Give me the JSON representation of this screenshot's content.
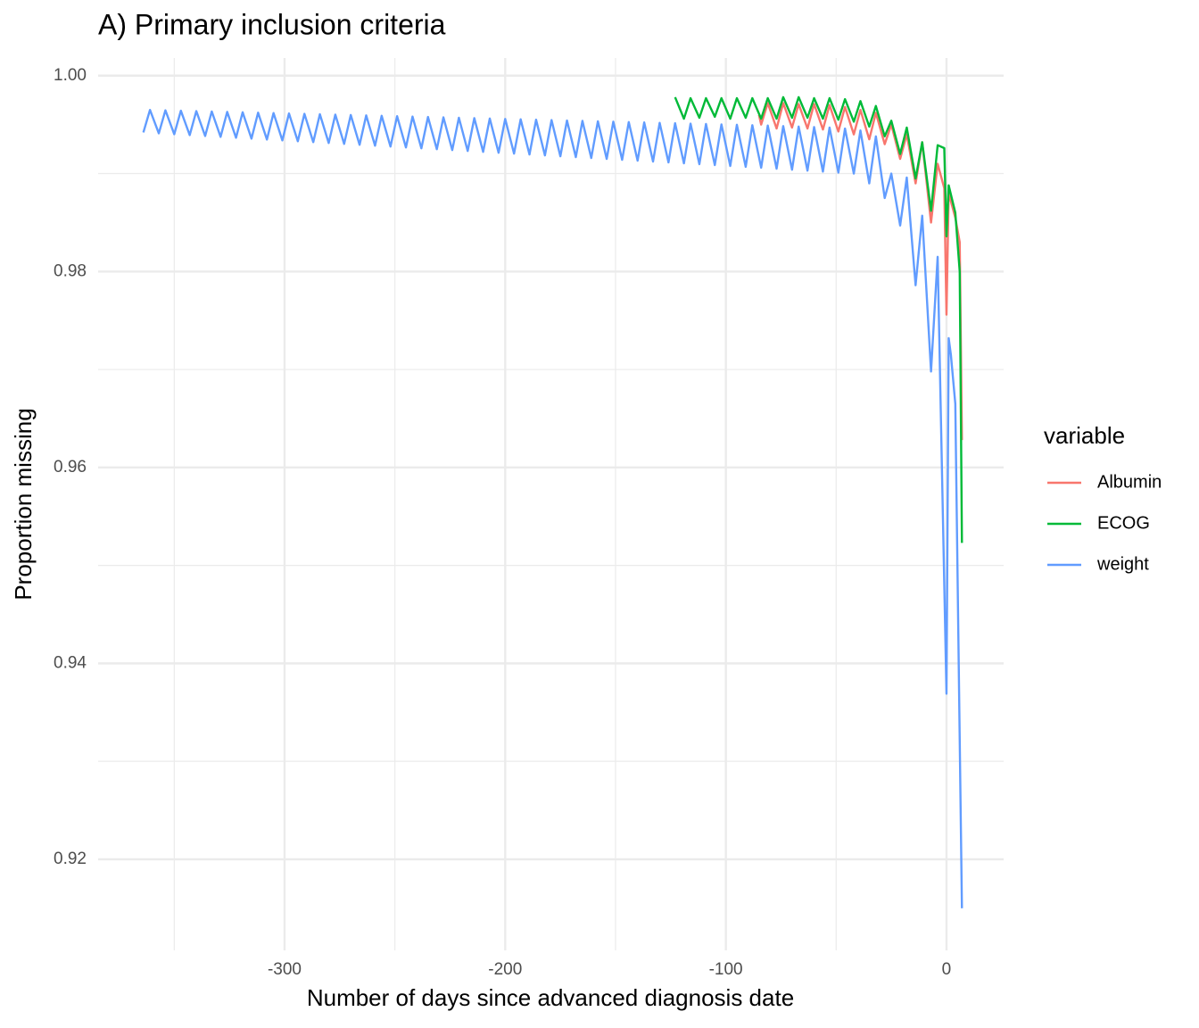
{
  "chart_data": {
    "type": "line",
    "title": "A) Primary inclusion criteria",
    "x_label": "Number of days since advanced diagnosis date",
    "y_label": "Proportion missing",
    "legend_title": "variable",
    "legend_position": "right",
    "grid": true,
    "xlim": [
      -384.5,
      25.9
    ],
    "ylim": [
      0.9107,
      1.0018
    ],
    "xticks": [
      -300,
      -200,
      -100,
      0
    ],
    "yticks": [
      0.92,
      0.94,
      0.96,
      0.98,
      {
        "value": 1,
        "label": "1.00"
      }
    ],
    "series": [
      {
        "name": "Albumin",
        "color": "#F8766D",
        "x": [
          -85,
          -84,
          -81,
          -77,
          -74,
          -70,
          -67,
          -63,
          -60,
          -56,
          -53,
          -49,
          -46,
          -42,
          -39,
          -35,
          -32,
          -28,
          -25,
          -21,
          -18,
          -14,
          -11,
          -7,
          -4,
          -1,
          0,
          1,
          4,
          6,
          7
        ],
        "values": [
          0.996,
          0.995,
          0.9972,
          0.9946,
          0.9972,
          0.9947,
          0.9971,
          0.9946,
          0.9971,
          0.9945,
          0.997,
          0.9943,
          0.9968,
          0.994,
          0.9965,
          0.9935,
          0.9962,
          0.993,
          0.995,
          0.9915,
          0.994,
          0.989,
          0.9932,
          0.985,
          0.991,
          0.9885,
          0.9756,
          0.988,
          0.9855,
          0.983,
          0.9628
        ]
      },
      {
        "name": "ECOG",
        "color": "#00BA38",
        "x": [
          -123,
          -119,
          -116,
          -112,
          -109,
          -105,
          -102,
          -98,
          -95,
          -91,
          -88,
          -84,
          -81,
          -77,
          -74,
          -70,
          -67,
          -63,
          -60,
          -56,
          -53,
          -49,
          -46,
          -42,
          -39,
          -35,
          -32,
          -28,
          -25,
          -21,
          -18,
          -14,
          -11,
          -7,
          -4,
          -1,
          0,
          1,
          4,
          6,
          7
        ],
        "values": [
          0.9978,
          0.9956,
          0.9977,
          0.9957,
          0.9977,
          0.9958,
          0.9977,
          0.9956,
          0.9977,
          0.9957,
          0.9977,
          0.9956,
          0.9977,
          0.9956,
          0.9978,
          0.9957,
          0.9978,
          0.9957,
          0.9977,
          0.9956,
          0.9977,
          0.9955,
          0.9976,
          0.9953,
          0.9974,
          0.9948,
          0.9969,
          0.9938,
          0.9954,
          0.992,
          0.9947,
          0.9895,
          0.9932,
          0.9862,
          0.9929,
          0.9926,
          0.9836,
          0.9888,
          0.986,
          0.98,
          0.9523
        ]
      },
      {
        "name": "weight",
        "color": "#619CFF",
        "x": [
          -364,
          -361,
          -357,
          -354,
          -350,
          -347,
          -343,
          -340,
          -336,
          -333,
          -329,
          -326,
          -322,
          -319,
          -315,
          -312,
          -308,
          -305,
          -301,
          -298,
          -294,
          -291,
          -287,
          -284,
          -280,
          -277,
          -273,
          -270,
          -266,
          -263,
          -259,
          -256,
          -252,
          -249,
          -245,
          -242,
          -238,
          -235,
          -231,
          -228,
          -224,
          -221,
          -217,
          -214,
          -210,
          -207,
          -203,
          -200,
          -196,
          -193,
          -189,
          -186,
          -182,
          -179,
          -175,
          -172,
          -168,
          -165,
          -161,
          -158,
          -154,
          -151,
          -147,
          -144,
          -140,
          -137,
          -133,
          -130,
          -126,
          -123,
          -119,
          -116,
          -112,
          -109,
          -105,
          -102,
          -98,
          -95,
          -91,
          -88,
          -84,
          -81,
          -77,
          -74,
          -70,
          -67,
          -63,
          -60,
          -56,
          -53,
          -49,
          -46,
          -42,
          -39,
          -35,
          -32,
          -28,
          -25,
          -21,
          -18,
          -14,
          -11,
          -7,
          -4,
          0,
          1,
          2,
          4,
          7
        ],
        "values": [
          0.9942,
          0.9965,
          0.99411,
          0.99646,
          0.99402,
          0.99642,
          0.99393,
          0.99638,
          0.99384,
          0.99634,
          0.99375,
          0.9963,
          0.99366,
          0.99626,
          0.99357,
          0.99622,
          0.99348,
          0.99618,
          0.99339,
          0.99614,
          0.9933,
          0.9961,
          0.99321,
          0.99606,
          0.99312,
          0.99602,
          0.99303,
          0.99598,
          0.99294,
          0.99594,
          0.99285,
          0.9959,
          0.99276,
          0.99586,
          0.99267,
          0.99582,
          0.99258,
          0.99578,
          0.99249,
          0.99574,
          0.9924,
          0.9957,
          0.99231,
          0.99566,
          0.99222,
          0.99562,
          0.99213,
          0.99558,
          0.99204,
          0.99554,
          0.99195,
          0.9955,
          0.99186,
          0.99546,
          0.99177,
          0.99542,
          0.99168,
          0.99538,
          0.99159,
          0.99534,
          0.9915,
          0.9953,
          0.99141,
          0.99526,
          0.99132,
          0.99522,
          0.99123,
          0.99518,
          0.99114,
          0.99514,
          0.99105,
          0.9951,
          0.99096,
          0.99506,
          0.99087,
          0.99502,
          0.99078,
          0.99498,
          0.99069,
          0.99494,
          0.9906,
          0.9949,
          0.9905,
          0.99485,
          0.9904,
          0.9948,
          0.9903,
          0.99475,
          0.9902,
          0.9947,
          0.9901,
          0.9946,
          0.99,
          0.9944,
          0.989,
          0.9938,
          0.9875,
          0.99,
          0.9847,
          0.9896,
          0.9786,
          0.9857,
          0.9698,
          0.9815,
          0.9369,
          0.9732,
          0.9715,
          0.9665,
          0.915
        ]
      }
    ]
  }
}
